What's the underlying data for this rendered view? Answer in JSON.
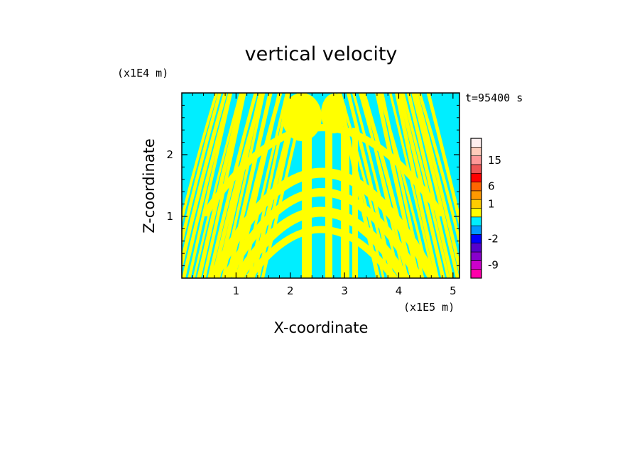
{
  "chart_data": {
    "type": "heatmap",
    "title": "vertical velocity",
    "xlabel": "X-coordinate",
    "ylabel": "Z-coordinate",
    "x_unit": "(x1E5 m)",
    "y_unit": "(x1E4 m)",
    "time_label": "t=95400 s",
    "xlim": [
      0,
      5.12
    ],
    "ylim": [
      0,
      3.0
    ],
    "x_ticks": [
      "1",
      "2",
      "3",
      "4",
      "5"
    ],
    "y_ticks": [
      "1",
      "2"
    ],
    "colorbar": {
      "levels": [
        {
          "label": "",
          "color": "#ff00aa"
        },
        {
          "label": "-9",
          "color": "#cc00cc"
        },
        {
          "label": "",
          "color": "#8800cc"
        },
        {
          "label": "",
          "color": "#5500cc"
        },
        {
          "label": "-2",
          "color": "#0000ff"
        },
        {
          "label": "",
          "color": "#0099ff"
        },
        {
          "label": "",
          "color": "#00eeff"
        },
        {
          "label": "",
          "color": "#ffff00"
        },
        {
          "label": "1",
          "color": "#ffcc00"
        },
        {
          "label": "",
          "color": "#ff9900"
        },
        {
          "label": "6",
          "color": "#ff6600"
        },
        {
          "label": "",
          "color": "#ff0000"
        },
        {
          "label": "",
          "color": "#ee5555"
        },
        {
          "label": "15",
          "color": "#ff9999"
        },
        {
          "label": "",
          "color": "#ffccbb"
        },
        {
          "label": "",
          "color": "#ffeeee"
        }
      ]
    },
    "field_colors": {
      "positive": "#ffff00",
      "negative": "#00eeff"
    },
    "grid": false,
    "legend": "right"
  }
}
